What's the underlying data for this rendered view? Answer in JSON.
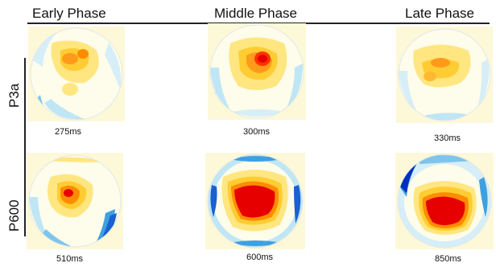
{
  "columns": [
    {
      "label": "Early Phase"
    },
    {
      "label": "Middle Phase"
    },
    {
      "label": "Late Phase"
    }
  ],
  "rows": [
    {
      "label": "P3a",
      "maps": [
        {
          "time": "275ms",
          "intensity": "low"
        },
        {
          "time": "300ms",
          "intensity": "medium"
        },
        {
          "time": "330ms",
          "intensity": "low"
        }
      ]
    },
    {
      "label": "P600",
      "maps": [
        {
          "time": "510ms",
          "intensity": "medium"
        },
        {
          "time": "600ms",
          "intensity": "high"
        },
        {
          "time": "850ms",
          "intensity": "high"
        }
      ]
    }
  ],
  "colors": {
    "background": "#fdf8d8",
    "positive_peak": "#e60000",
    "positive_mid": "#ff8c00",
    "positive_low": "#ffd966",
    "negative_low": "#bfe6f5",
    "negative_mid": "#3fa0e0",
    "negative_peak": "#0030c0"
  }
}
